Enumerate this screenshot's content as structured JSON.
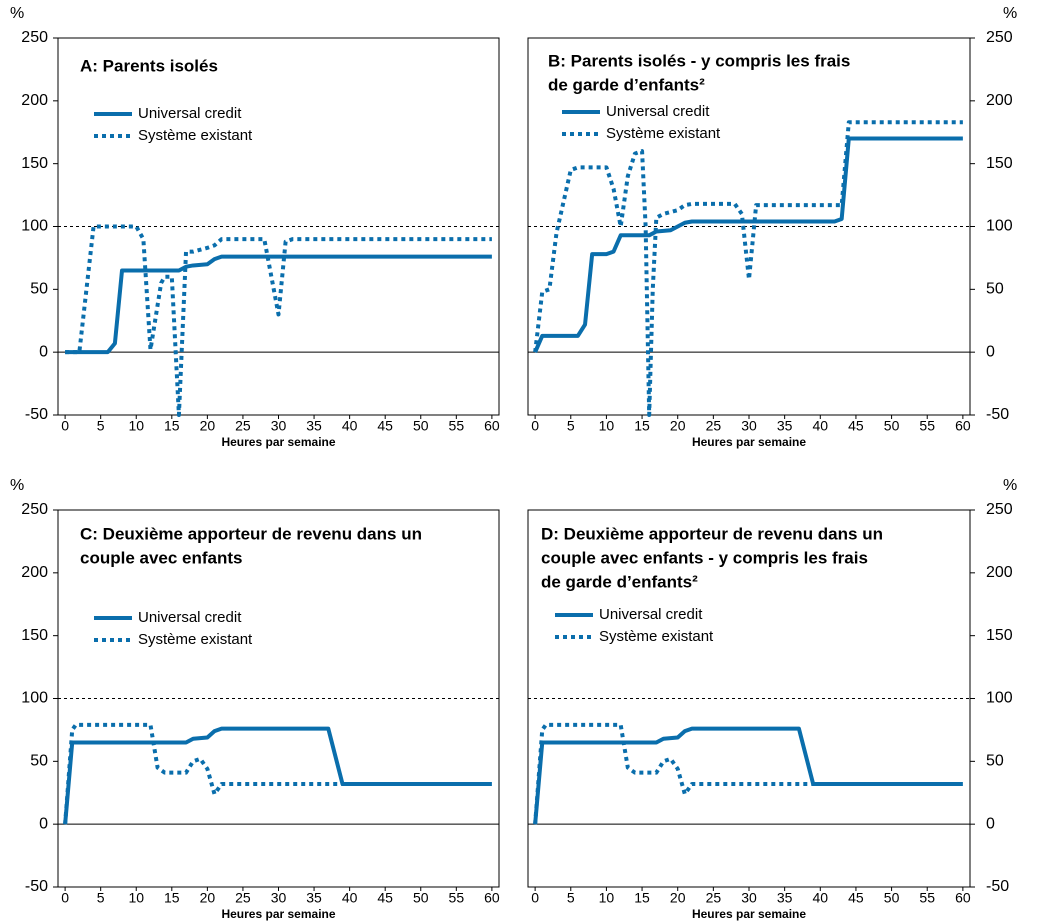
{
  "chart_data": [
    {
      "type": "line",
      "title": [
        "A: Parents isolés"
      ],
      "xlabel": "Heures par semaine",
      "ylabel": "%",
      "xlim": [
        -1,
        61
      ],
      "ylim": [
        -50,
        250
      ],
      "xticks": [
        0,
        5,
        10,
        15,
        20,
        25,
        30,
        35,
        40,
        45,
        50,
        55,
        60
      ],
      "yticks": [
        -50,
        0,
        50,
        100,
        150,
        200,
        250
      ],
      "reference_line": 100,
      "y_axis_side": "left",
      "series": [
        {
          "name": "Universal credit",
          "color": "#0a6eac",
          "style": "solid",
          "x": [
            0,
            6,
            7,
            8,
            16,
            17,
            18,
            20,
            21,
            22,
            60
          ],
          "values": [
            0,
            0,
            7,
            65,
            65,
            68,
            69,
            70,
            74,
            76,
            76
          ]
        },
        {
          "name": "Système existant",
          "color": "#0a6eac",
          "style": "dotted",
          "x": [
            0,
            2,
            4,
            10,
            11,
            12,
            13.5,
            14,
            15,
            16,
            17,
            18,
            20,
            21,
            22,
            28,
            30,
            31,
            32,
            60
          ],
          "values": [
            0,
            0,
            100,
            100,
            90,
            2,
            55,
            60,
            60,
            -50,
            80,
            80,
            83,
            85,
            90,
            90,
            30,
            88,
            90,
            90
          ]
        }
      ]
    },
    {
      "type": "line",
      "title": [
        "B: Parents isolés - y compris les frais",
        "de garde d’enfants²"
      ],
      "xlabel": "Heures par semaine",
      "ylabel": "%",
      "xlim": [
        -1,
        61
      ],
      "ylim": [
        -50,
        250
      ],
      "xticks": [
        0,
        5,
        10,
        15,
        20,
        25,
        30,
        35,
        40,
        45,
        50,
        55,
        60
      ],
      "yticks": [
        -50,
        0,
        50,
        100,
        150,
        200,
        250
      ],
      "reference_line": 100,
      "y_axis_side": "right",
      "series": [
        {
          "name": "Universal credit",
          "color": "#0a6eac",
          "style": "solid",
          "x": [
            0,
            1,
            6,
            7,
            8,
            10,
            11,
            12,
            16,
            17,
            19,
            20,
            21,
            22,
            42,
            43,
            44,
            60
          ],
          "values": [
            0,
            13,
            13,
            22,
            78,
            78,
            80,
            93,
            93,
            96,
            97,
            100,
            103,
            104,
            104,
            106,
            170,
            170
          ]
        },
        {
          "name": "Système existant",
          "color": "#0a6eac",
          "style": "dotted",
          "x": [
            0,
            1,
            2,
            3,
            5,
            6,
            10,
            11,
            12,
            13,
            14,
            15,
            15.5,
            16,
            16.5,
            17,
            18,
            20,
            21,
            22,
            28,
            29,
            30,
            31,
            43,
            44,
            60
          ],
          "values": [
            0,
            48,
            50,
            95,
            145,
            147,
            147,
            130,
            100,
            140,
            158,
            160,
            100,
            -50,
            50,
            107,
            110,
            113,
            117,
            118,
            118,
            110,
            58,
            117,
            117,
            183,
            183
          ]
        }
      ]
    },
    {
      "type": "line",
      "title": [
        "C: Deuxième apporteur de revenu dans un",
        "couple avec enfants"
      ],
      "xlabel": "Heures par semaine",
      "ylabel": "%",
      "xlim": [
        -1,
        61
      ],
      "ylim": [
        -50,
        250
      ],
      "xticks": [
        0,
        5,
        10,
        15,
        20,
        25,
        30,
        35,
        40,
        45,
        50,
        55,
        60
      ],
      "yticks": [
        -50,
        0,
        50,
        100,
        150,
        200,
        250
      ],
      "reference_line": 100,
      "y_axis_side": "left",
      "series": [
        {
          "name": "Universal credit",
          "color": "#0a6eac",
          "style": "solid",
          "x": [
            0,
            1,
            17,
            18,
            20,
            21,
            22,
            37,
            39,
            60
          ],
          "values": [
            0,
            65,
            65,
            68,
            69,
            74,
            76,
            76,
            32,
            32
          ]
        },
        {
          "name": "Système existant",
          "color": "#0a6eac",
          "style": "dotted",
          "x": [
            0,
            1,
            1.5,
            12,
            13,
            14,
            17,
            18,
            19,
            20,
            21,
            22,
            60
          ],
          "values": [
            0,
            75,
            79,
            79,
            45,
            41,
            41,
            50,
            52,
            44,
            24,
            32,
            32
          ]
        }
      ]
    },
    {
      "type": "line",
      "title": [
        "D: Deuxième apporteur de revenu dans un",
        "couple avec enfants - y compris les frais",
        "de garde d’enfants²"
      ],
      "xlabel": "Heures par semaine",
      "ylabel": "%",
      "xlim": [
        -1,
        61
      ],
      "ylim": [
        -50,
        250
      ],
      "xticks": [
        0,
        5,
        10,
        15,
        20,
        25,
        30,
        35,
        40,
        45,
        50,
        55,
        60
      ],
      "yticks": [
        -50,
        0,
        50,
        100,
        150,
        200,
        250
      ],
      "reference_line": 100,
      "y_axis_side": "right",
      "series": [
        {
          "name": "Universal credit",
          "color": "#0a6eac",
          "style": "solid",
          "x": [
            0,
            1,
            17,
            18,
            20,
            21,
            22,
            37,
            39,
            60
          ],
          "values": [
            0,
            65,
            65,
            68,
            69,
            74,
            76,
            76,
            32,
            32
          ]
        },
        {
          "name": "Système existant",
          "color": "#0a6eac",
          "style": "dotted",
          "x": [
            0,
            1,
            1.5,
            12,
            13,
            14,
            17,
            18,
            19,
            20,
            21,
            22,
            60
          ],
          "values": [
            0,
            75,
            79,
            79,
            45,
            41,
            41,
            50,
            52,
            44,
            24,
            32,
            32
          ]
        }
      ]
    }
  ]
}
